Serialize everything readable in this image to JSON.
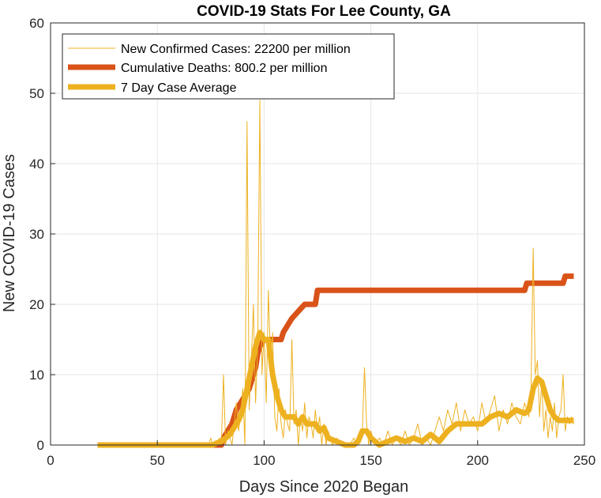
{
  "chart_data": {
    "type": "line",
    "title": "COVID-19 Stats For Lee County, GA",
    "xlabel": "Days Since 2020 Began",
    "ylabel": "New COVID-19 Cases",
    "xlim": [
      0,
      250
    ],
    "ylim": [
      0,
      60
    ],
    "xticks": [
      0,
      50,
      100,
      150,
      200,
      250
    ],
    "yticks": [
      0,
      10,
      20,
      30,
      40,
      50,
      60
    ],
    "grid": true,
    "legend_position": "top-left",
    "series": [
      {
        "name": "New Confirmed Cases: 22200 per million",
        "color": "#EDB120",
        "style": "thin",
        "points": [
          [
            22,
            0
          ],
          [
            74,
            0
          ],
          [
            75,
            1
          ],
          [
            76,
            0
          ],
          [
            78,
            0
          ],
          [
            79,
            1
          ],
          [
            80,
            0
          ],
          [
            81,
            10
          ],
          [
            82,
            0
          ],
          [
            83,
            2
          ],
          [
            84,
            1
          ],
          [
            85,
            0
          ],
          [
            86,
            3
          ],
          [
            87,
            6
          ],
          [
            88,
            2
          ],
          [
            89,
            4
          ],
          [
            90,
            8
          ],
          [
            91,
            0
          ],
          [
            92,
            46
          ],
          [
            93,
            5
          ],
          [
            94,
            12
          ],
          [
            95,
            20
          ],
          [
            96,
            6
          ],
          [
            97,
            14
          ],
          [
            98,
            49
          ],
          [
            99,
            10
          ],
          [
            100,
            16
          ],
          [
            101,
            6
          ],
          [
            102,
            22
          ],
          [
            103,
            12
          ],
          [
            104,
            16
          ],
          [
            105,
            4
          ],
          [
            106,
            2
          ],
          [
            107,
            8
          ],
          [
            108,
            3
          ],
          [
            109,
            1
          ],
          [
            110,
            5
          ],
          [
            111,
            3
          ],
          [
            112,
            2
          ],
          [
            113,
            15
          ],
          [
            114,
            3
          ],
          [
            115,
            5
          ],
          [
            116,
            0
          ],
          [
            117,
            4
          ],
          [
            118,
            2
          ],
          [
            119,
            6
          ],
          [
            120,
            1
          ],
          [
            121,
            4
          ],
          [
            122,
            3
          ],
          [
            123,
            1
          ],
          [
            124,
            5
          ],
          [
            125,
            2
          ],
          [
            126,
            4
          ],
          [
            127,
            0
          ],
          [
            128,
            3
          ],
          [
            129,
            0
          ],
          [
            130,
            2
          ],
          [
            132,
            0
          ],
          [
            134,
            1
          ],
          [
            136,
            0
          ],
          [
            140,
            0
          ],
          [
            142,
            1
          ],
          [
            144,
            0
          ],
          [
            146,
            2
          ],
          [
            147,
            11
          ],
          [
            148,
            3
          ],
          [
            149,
            0
          ],
          [
            150,
            2
          ],
          [
            152,
            0
          ],
          [
            154,
            1
          ],
          [
            156,
            0
          ],
          [
            158,
            2
          ],
          [
            160,
            0
          ],
          [
            162,
            1
          ],
          [
            164,
            0
          ],
          [
            166,
            2
          ],
          [
            168,
            0
          ],
          [
            170,
            1
          ],
          [
            172,
            3
          ],
          [
            174,
            0
          ],
          [
            176,
            1
          ],
          [
            178,
            0
          ],
          [
            180,
            2
          ],
          [
            182,
            4
          ],
          [
            184,
            2
          ],
          [
            186,
            5
          ],
          [
            188,
            3
          ],
          [
            190,
            6
          ],
          [
            192,
            2
          ],
          [
            194,
            5
          ],
          [
            196,
            3
          ],
          [
            198,
            4
          ],
          [
            200,
            2
          ],
          [
            202,
            6
          ],
          [
            204,
            3
          ],
          [
            206,
            5
          ],
          [
            208,
            7
          ],
          [
            210,
            2
          ],
          [
            212,
            5
          ],
          [
            214,
            3
          ],
          [
            216,
            6
          ],
          [
            218,
            4
          ],
          [
            220,
            3
          ],
          [
            222,
            6
          ],
          [
            224,
            4
          ],
          [
            225,
            8
          ],
          [
            226,
            28
          ],
          [
            227,
            10
          ],
          [
            228,
            12
          ],
          [
            229,
            4
          ],
          [
            230,
            9
          ],
          [
            231,
            2
          ],
          [
            232,
            5
          ],
          [
            233,
            1
          ],
          [
            234,
            4
          ],
          [
            235,
            2
          ],
          [
            236,
            6
          ],
          [
            237,
            1
          ],
          [
            238,
            4
          ],
          [
            239,
            5
          ],
          [
            240,
            10
          ],
          [
            241,
            2
          ],
          [
            242,
            4
          ],
          [
            243,
            3
          ],
          [
            244,
            4
          ],
          [
            245,
            3
          ]
        ]
      },
      {
        "name": "Cumulative Deaths: 800.2 per million",
        "color": "#D95319",
        "style": "thick",
        "points": [
          [
            22,
            0
          ],
          [
            80,
            0
          ],
          [
            81,
            1
          ],
          [
            83,
            2
          ],
          [
            85,
            3
          ],
          [
            87,
            5
          ],
          [
            89,
            6
          ],
          [
            91,
            7
          ],
          [
            93,
            8
          ],
          [
            95,
            10
          ],
          [
            96,
            11
          ],
          [
            97,
            13
          ],
          [
            98,
            14
          ],
          [
            100,
            15
          ],
          [
            108,
            15
          ],
          [
            109,
            16
          ],
          [
            111,
            17
          ],
          [
            113,
            18
          ],
          [
            116,
            19
          ],
          [
            119,
            20
          ],
          [
            124,
            20
          ],
          [
            125,
            22
          ],
          [
            222,
            22
          ],
          [
            223,
            23
          ],
          [
            240,
            23
          ],
          [
            241,
            24
          ],
          [
            245,
            24
          ]
        ]
      },
      {
        "name": "7 Day Case Average",
        "color": "#EDB120",
        "style": "medium",
        "points": [
          [
            22,
            0
          ],
          [
            76,
            0
          ],
          [
            78,
            0.3
          ],
          [
            80,
            0.5
          ],
          [
            82,
            1.0
          ],
          [
            84,
            1.5
          ],
          [
            86,
            2.5
          ],
          [
            88,
            3.5
          ],
          [
            90,
            5
          ],
          [
            92,
            8
          ],
          [
            94,
            11
          ],
          [
            96,
            14
          ],
          [
            98,
            16
          ],
          [
            100,
            15
          ],
          [
            102,
            15
          ],
          [
            104,
            10
          ],
          [
            106,
            7
          ],
          [
            108,
            5
          ],
          [
            110,
            4
          ],
          [
            112,
            4
          ],
          [
            114,
            4
          ],
          [
            116,
            3
          ],
          [
            118,
            4
          ],
          [
            120,
            3
          ],
          [
            122,
            3
          ],
          [
            124,
            3
          ],
          [
            126,
            2
          ],
          [
            128,
            2.5
          ],
          [
            130,
            1
          ],
          [
            134,
            0.5
          ],
          [
            138,
            0
          ],
          [
            142,
            0
          ],
          [
            144,
            0.5
          ],
          [
            146,
            2
          ],
          [
            148,
            2
          ],
          [
            150,
            1
          ],
          [
            154,
            0
          ],
          [
            158,
            0.5
          ],
          [
            162,
            1
          ],
          [
            166,
            0.5
          ],
          [
            170,
            1
          ],
          [
            174,
            0.5
          ],
          [
            178,
            1.5
          ],
          [
            182,
            0.5
          ],
          [
            186,
            2
          ],
          [
            190,
            3
          ],
          [
            194,
            3
          ],
          [
            198,
            3
          ],
          [
            202,
            3
          ],
          [
            206,
            4
          ],
          [
            210,
            4.5
          ],
          [
            214,
            4
          ],
          [
            218,
            5
          ],
          [
            222,
            4.5
          ],
          [
            224,
            5
          ],
          [
            226,
            8
          ],
          [
            228,
            9.5
          ],
          [
            230,
            9
          ],
          [
            232,
            7
          ],
          [
            234,
            5
          ],
          [
            236,
            4
          ],
          [
            238,
            3.5
          ],
          [
            240,
            3.5
          ],
          [
            242,
            3.5
          ],
          [
            245,
            3.5
          ]
        ]
      }
    ]
  }
}
